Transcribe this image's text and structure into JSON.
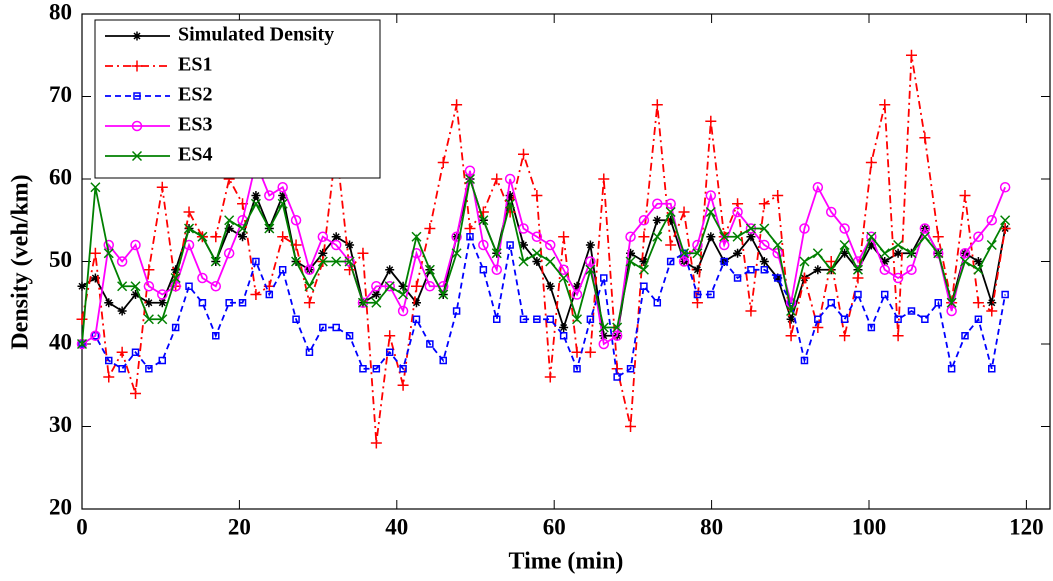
{
  "chart_data": {
    "type": "line",
    "xlabel": "Time (min)",
    "ylabel": "Density  (veh/km)",
    "xlim": [
      0,
      123
    ],
    "ylim": [
      20,
      80
    ],
    "xticks": [
      0,
      20,
      40,
      60,
      80,
      100,
      120
    ],
    "yticks": [
      20,
      30,
      40,
      50,
      60,
      70,
      80
    ],
    "grid": false,
    "legend": "upper left",
    "x": [
      0,
      1.7,
      3.4,
      5.1,
      6.8,
      8.5,
      10.2,
      11.9,
      13.6,
      15.3,
      17,
      18.7,
      20.4,
      22.1,
      23.8,
      25.5,
      27.2,
      28.9,
      30.6,
      32.3,
      34,
      35.7,
      37.4,
      39.1,
      40.8,
      42.5,
      44.2,
      45.9,
      47.6,
      49.3,
      51,
      52.7,
      54.4,
      56.1,
      57.8,
      59.5,
      61.2,
      62.9,
      64.6,
      66.3,
      68,
      69.7,
      71.4,
      73.1,
      74.8,
      76.5,
      78.2,
      79.9,
      81.6,
      83.3,
      85,
      86.7,
      88.4,
      90.1,
      91.8,
      93.5,
      95.2,
      96.9,
      98.6,
      100.3,
      102,
      103.7,
      105.4,
      107.1,
      108.8,
      110.5,
      112.2,
      113.9,
      115.6,
      117.3
    ],
    "series": [
      {
        "name": "Simulated Density",
        "color": "#000000",
        "marker": "star",
        "linestyle": "solid",
        "values": [
          47,
          48,
          45,
          44,
          46,
          45,
          45,
          49,
          54,
          53,
          50,
          54,
          53,
          58,
          54,
          58,
          50,
          49,
          51,
          53,
          52,
          45,
          46,
          49,
          47,
          45,
          49,
          46,
          53,
          60,
          55,
          51,
          58,
          52,
          50,
          47,
          42,
          47,
          52,
          41,
          41,
          51,
          50,
          55,
          55,
          50,
          49,
          53,
          50,
          51,
          53,
          50,
          48,
          43,
          48,
          49,
          49,
          51,
          49,
          52,
          50,
          51,
          51,
          54,
          51,
          45,
          51,
          50,
          45,
          54
        ]
      },
      {
        "name": "ES1",
        "color": "#ff0000",
        "marker": "plus",
        "linestyle": "dashdot",
        "values": [
          43,
          51,
          36,
          39,
          34,
          49,
          59,
          47,
          56,
          53,
          53,
          60,
          57,
          46,
          47,
          53,
          52,
          45,
          50,
          64,
          49,
          51,
          28,
          41,
          35,
          47,
          54,
          62,
          69,
          54,
          56,
          60,
          56,
          63,
          58,
          36,
          53,
          39,
          39,
          60,
          37,
          30,
          53,
          69,
          52,
          56,
          45,
          67,
          53,
          57,
          44,
          57,
          58,
          41,
          48,
          42,
          50,
          41,
          48,
          62,
          69,
          41,
          75,
          65,
          53,
          45,
          58,
          45,
          44,
          54
        ]
      },
      {
        "name": "ES2",
        "color": "#0000ff",
        "marker": "square",
        "linestyle": "dashed",
        "values": [
          40,
          41,
          38,
          37,
          39,
          37,
          38,
          42,
          47,
          45,
          41,
          45,
          45,
          50,
          46,
          49,
          43,
          39,
          42,
          42,
          41,
          37,
          37,
          39,
          37,
          43,
          40,
          38,
          44,
          53,
          49,
          43,
          52,
          43,
          43,
          43,
          41,
          37,
          43,
          48,
          36,
          37,
          47,
          45,
          50,
          51,
          46,
          46,
          50,
          48,
          49,
          49,
          48,
          45,
          38,
          43,
          45,
          43,
          46,
          42,
          46,
          43,
          44,
          43,
          45,
          37,
          41,
          43,
          37,
          46
        ]
      },
      {
        "name": "ES3",
        "color": "#ff00ff",
        "marker": "circle",
        "linestyle": "solid",
        "values": [
          40,
          41,
          52,
          50,
          52,
          47,
          46,
          47,
          52,
          48,
          47,
          51,
          55,
          62,
          58,
          59,
          55,
          49,
          53,
          52,
          50,
          45,
          47,
          47,
          44,
          51,
          47,
          47,
          53,
          61,
          52,
          49,
          60,
          54,
          53,
          52,
          49,
          46,
          50,
          40,
          41,
          53,
          55,
          57,
          57,
          50,
          52,
          58,
          52,
          56,
          54,
          52,
          51,
          45,
          54,
          59,
          56,
          54,
          50,
          53,
          49,
          48,
          49,
          54,
          51,
          44,
          51,
          53,
          55,
          59
        ]
      },
      {
        "name": "ES4",
        "color": "#008000",
        "marker": "x",
        "linestyle": "solid",
        "values": [
          40,
          59,
          51,
          47,
          47,
          43,
          43,
          48,
          54,
          53,
          50,
          55,
          54,
          57,
          54,
          57,
          50,
          47,
          50,
          50,
          50,
          45,
          45,
          47,
          46,
          53,
          49,
          46,
          51,
          60,
          55,
          51,
          57,
          50,
          51,
          50,
          48,
          43,
          49,
          42,
          42,
          50,
          49,
          53,
          56,
          51,
          51,
          56,
          53,
          53,
          54,
          54,
          52,
          44,
          50,
          51,
          49,
          52,
          49,
          53,
          51,
          52,
          51,
          53,
          51,
          45,
          50,
          49,
          52,
          55
        ]
      }
    ]
  }
}
